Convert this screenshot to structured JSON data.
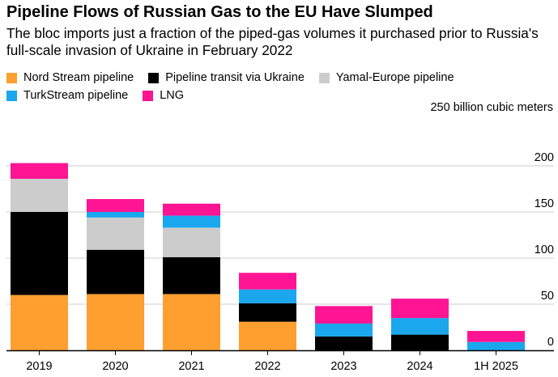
{
  "header": {
    "title": "Pipeline Flows of Russian Gas to the EU Have Slumped",
    "subtitle": "The bloc imports just a fraction of the piped-gas volumes it purchased prior to Russia's full-scale invasion of Ukraine in February 2022"
  },
  "legend": [
    {
      "label": "Nord Stream pipeline",
      "color": "#ff9f2f"
    },
    {
      "label": "Pipeline transit via Ukraine",
      "color": "#000000"
    },
    {
      "label": "Yamal-Europe pipeline",
      "color": "#cccccc"
    },
    {
      "label": "TurkStream pipeline",
      "color": "#1aa7ee"
    },
    {
      "label": "LNG",
      "color": "#ff1493"
    }
  ],
  "chart_data": {
    "type": "bar",
    "stacked": true,
    "unit": "250 billion cubic meters",
    "categories": [
      "2019",
      "2020",
      "2021",
      "2022",
      "2023",
      "2024",
      "1H 2025"
    ],
    "y_ticks": [
      "0",
      "50",
      "100",
      "150",
      "200"
    ],
    "ylim": [
      0,
      250
    ],
    "grid": true,
    "y_axis_position": "right",
    "series": [
      {
        "name": "Nord Stream pipeline",
        "color": "#ff9f2f",
        "values": [
          60,
          61,
          61,
          31,
          0,
          0,
          0
        ]
      },
      {
        "name": "Pipeline transit via Ukraine",
        "color": "#000000",
        "values": [
          90,
          48,
          40,
          20,
          15,
          17,
          0
        ]
      },
      {
        "name": "Yamal-Europe pipeline",
        "color": "#cccccc",
        "values": [
          36,
          35,
          32,
          0,
          0,
          0,
          0
        ]
      },
      {
        "name": "TurkStream pipeline",
        "color": "#1aa7ee",
        "values": [
          0,
          6,
          13,
          15,
          14,
          18,
          9
        ]
      },
      {
        "name": "LNG",
        "color": "#ff1493",
        "values": [
          17,
          14,
          13,
          18,
          19,
          21,
          12
        ]
      }
    ]
  }
}
